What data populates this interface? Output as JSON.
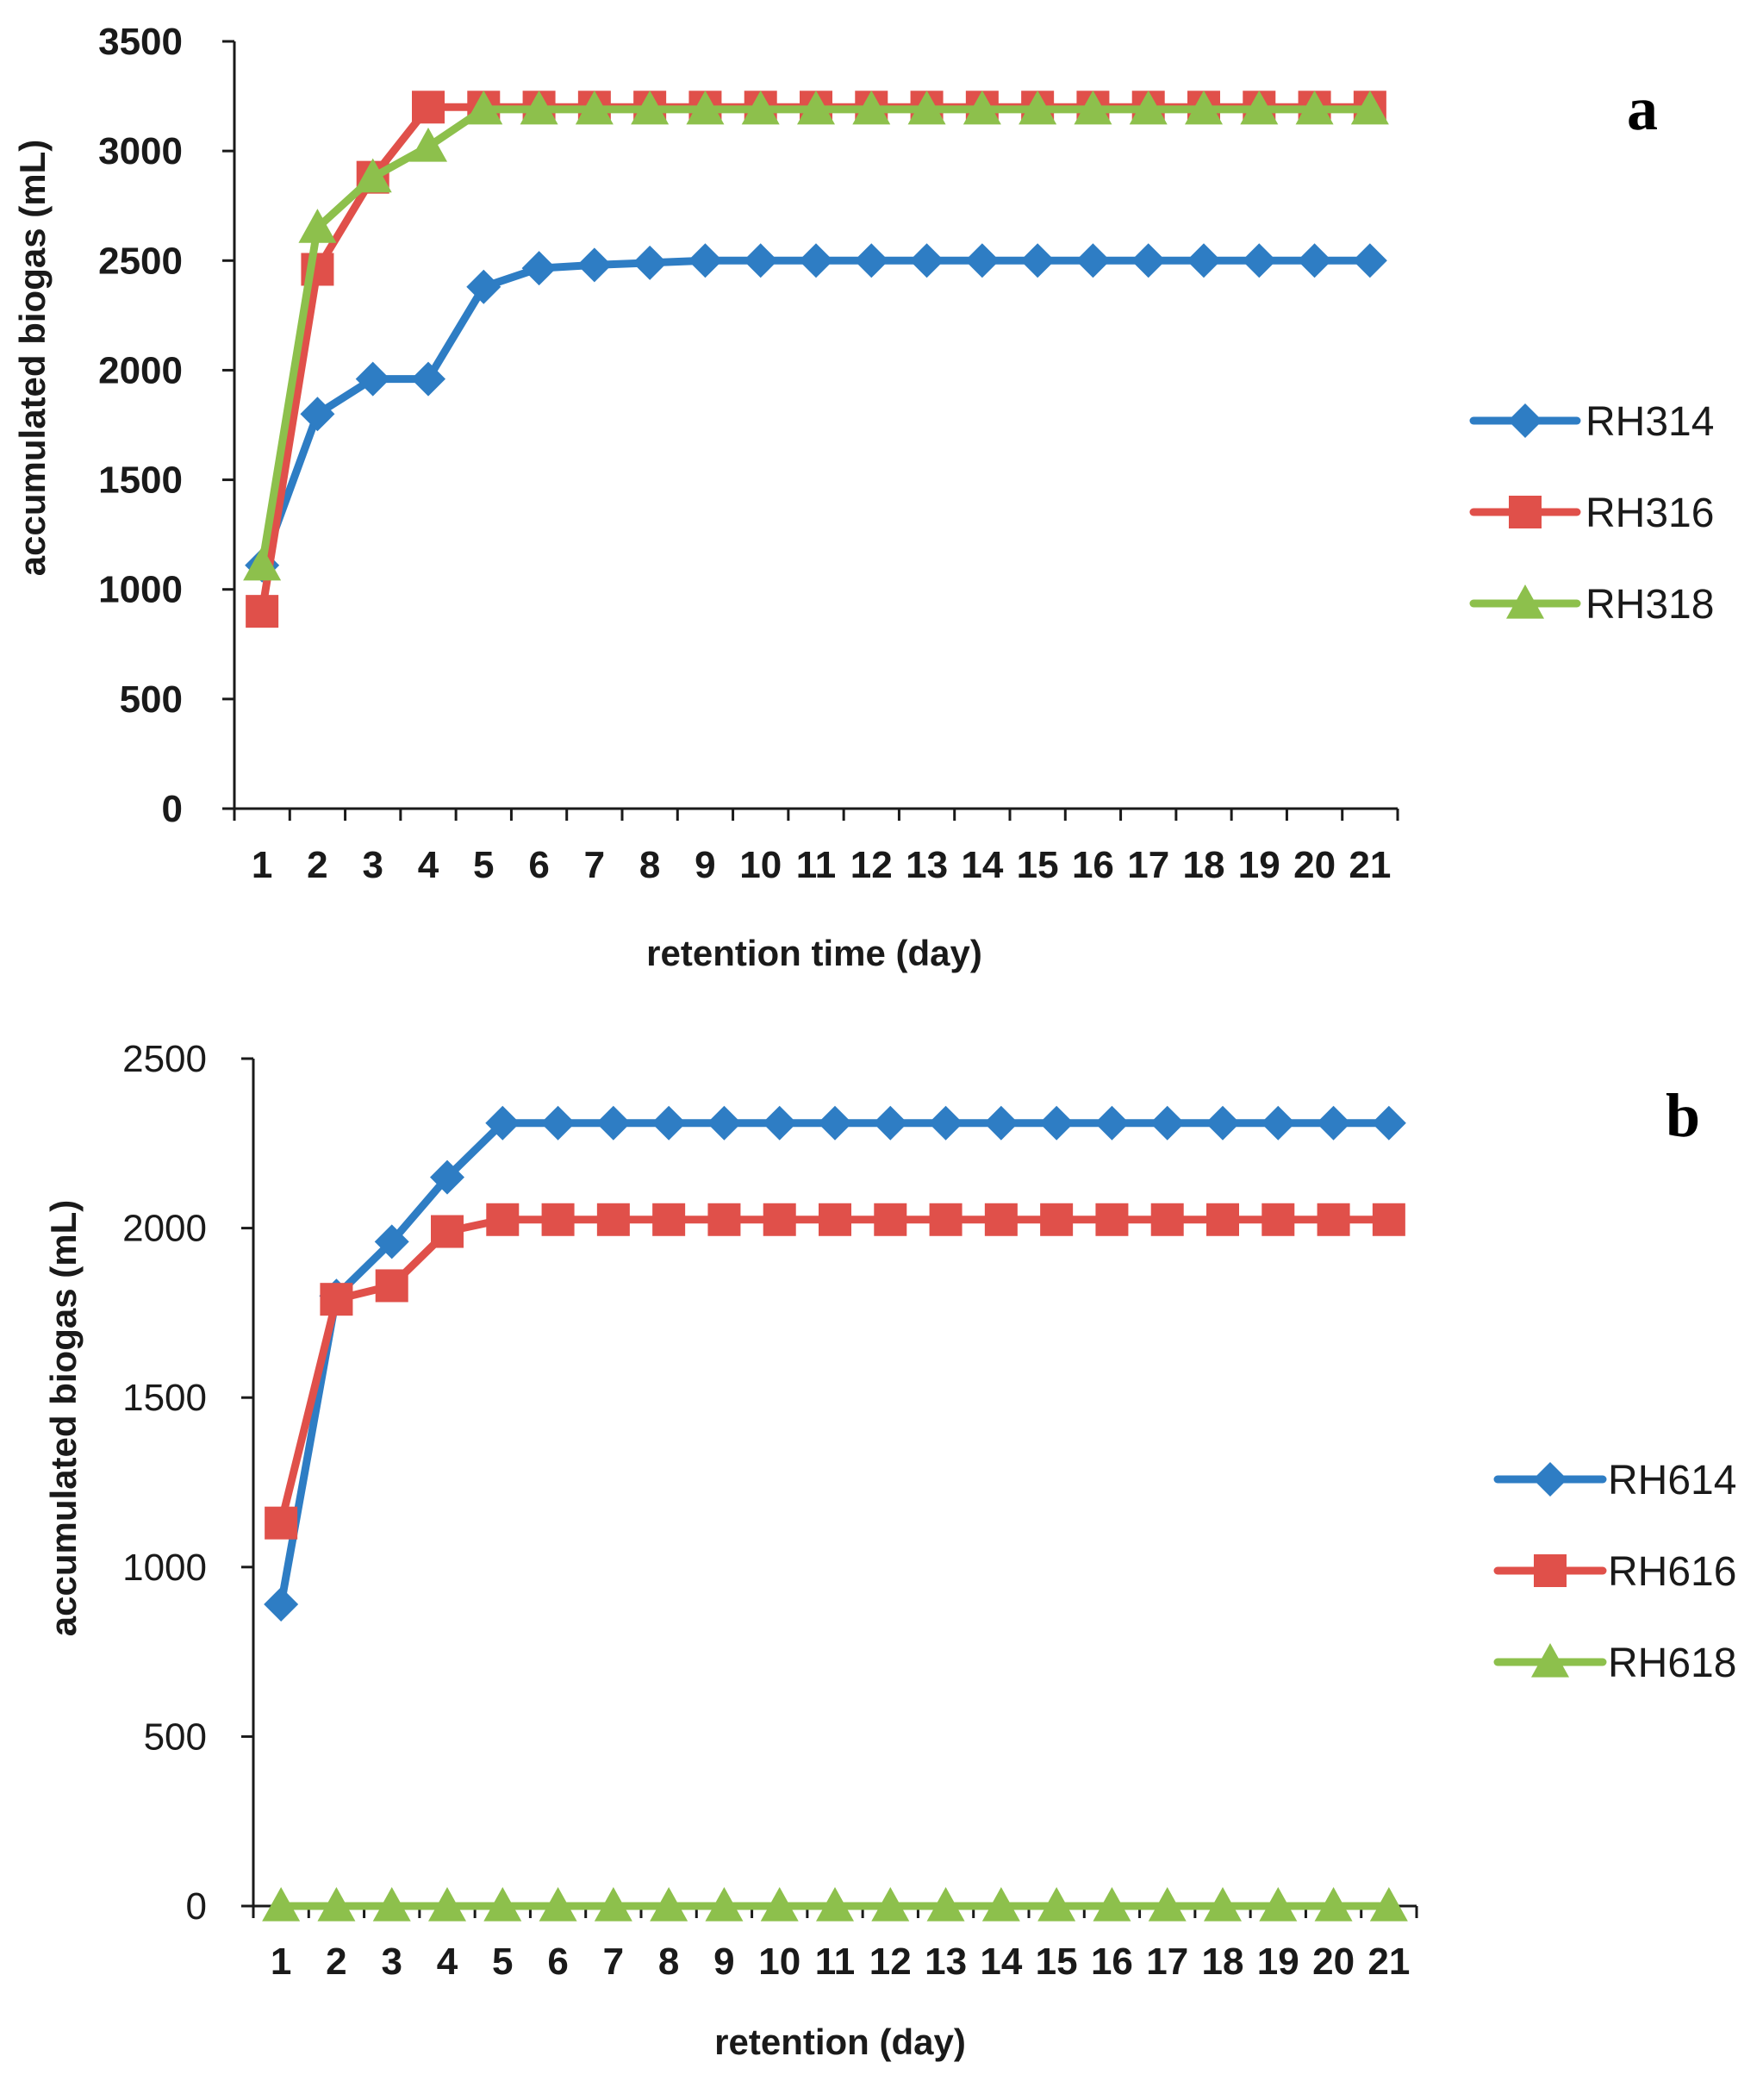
{
  "chart_data": [
    {
      "type": "line",
      "panel_label": "a",
      "xlabel": "retention time (day)",
      "ylabel": "accumulated biogas (mL)",
      "categories": [
        "1",
        "2",
        "3",
        "4",
        "5",
        "6",
        "7",
        "8",
        "9",
        "10",
        "11",
        "12",
        "13",
        "14",
        "15",
        "16",
        "17",
        "18",
        "19",
        "20",
        "21"
      ],
      "ylim": [
        0,
        3500
      ],
      "yticks": [
        "0",
        "500",
        "1000",
        "1500",
        "2000",
        "2500",
        "3000",
        "3500"
      ],
      "legend_position": "right",
      "series": [
        {
          "name": "RH314",
          "marker": "diamond",
          "color": "#2E7DC4",
          "values": [
            1110,
            1800,
            1960,
            1960,
            2380,
            2465,
            2480,
            2490,
            2500,
            2500,
            2500,
            2500,
            2500,
            2500,
            2500,
            2500,
            2500,
            2500,
            2500,
            2500,
            2500
          ]
        },
        {
          "name": "RH316",
          "marker": "square",
          "color": "#E0504A",
          "values": [
            900,
            2460,
            2880,
            3200,
            3200,
            3200,
            3200,
            3200,
            3200,
            3200,
            3200,
            3200,
            3200,
            3200,
            3200,
            3200,
            3200,
            3200,
            3200,
            3200,
            3200
          ]
        },
        {
          "name": "RH318",
          "marker": "triangle",
          "color": "#8DC04C",
          "values": [
            1110,
            2650,
            2880,
            3020,
            3190,
            3190,
            3190,
            3190,
            3190,
            3190,
            3190,
            3190,
            3190,
            3190,
            3190,
            3190,
            3190,
            3190,
            3190,
            3190,
            3190
          ]
        }
      ]
    },
    {
      "type": "line",
      "panel_label": "b",
      "xlabel": "retention (day)",
      "ylabel": "accumulated biogas (mL)",
      "categories": [
        "1",
        "2",
        "3",
        "4",
        "5",
        "6",
        "7",
        "8",
        "9",
        "10",
        "11",
        "12",
        "13",
        "14",
        "15",
        "16",
        "17",
        "18",
        "19",
        "20",
        "21"
      ],
      "ylim": [
        0,
        2500
      ],
      "yticks": [
        "0",
        "500",
        "1000",
        "1500",
        "2000",
        "2500"
      ],
      "legend_position": "right",
      "series": [
        {
          "name": "RH614",
          "marker": "diamond",
          "color": "#2E7DC4",
          "values": [
            890,
            1800,
            1960,
            2150,
            2310,
            2310,
            2310,
            2310,
            2310,
            2310,
            2310,
            2310,
            2310,
            2310,
            2310,
            2310,
            2310,
            2310,
            2310,
            2310,
            2310
          ]
        },
        {
          "name": "RH616",
          "marker": "square",
          "color": "#E0504A",
          "values": [
            1130,
            1790,
            1830,
            1990,
            2025,
            2025,
            2025,
            2025,
            2025,
            2025,
            2025,
            2025,
            2025,
            2025,
            2025,
            2025,
            2025,
            2025,
            2025,
            2025,
            2025
          ]
        },
        {
          "name": "RH618",
          "marker": "triangle",
          "color": "#8DC04C",
          "values": [
            0,
            0,
            0,
            0,
            0,
            0,
            0,
            0,
            0,
            0,
            0,
            0,
            0,
            0,
            0,
            0,
            0,
            0,
            0,
            0,
            0
          ]
        }
      ]
    }
  ]
}
